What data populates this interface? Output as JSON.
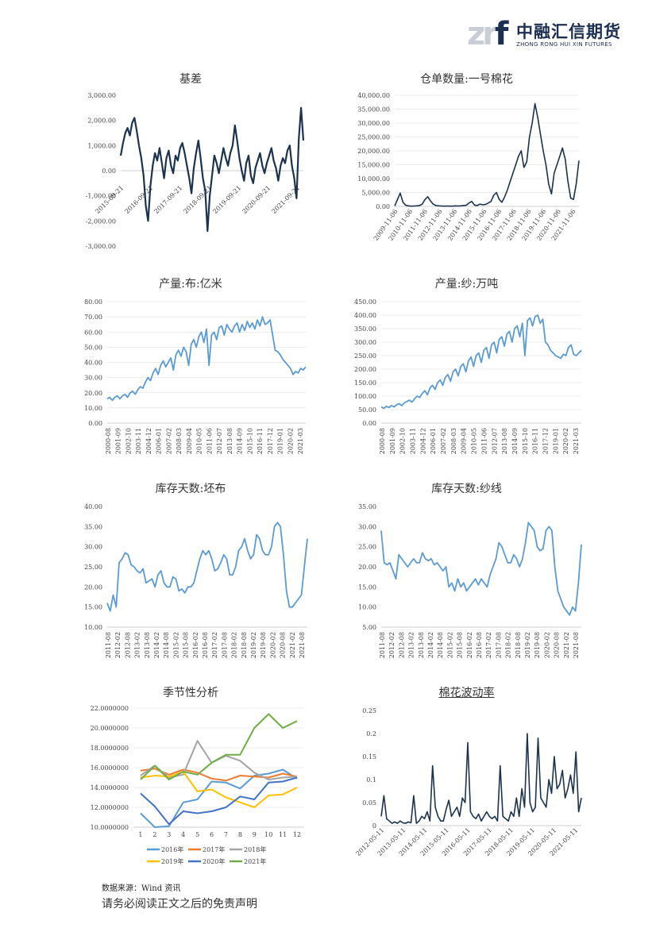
{
  "header": {
    "logo_mark": "zr",
    "logo_mark_f": "f",
    "logo_cn": "中融汇信期货",
    "logo_en": "ZHONG RONG HUI XIN FUTURES"
  },
  "footer": {
    "source": "数据来源：Wind 资讯",
    "disclaimer": "请务必阅读正文之后的免责声明"
  },
  "colors": {
    "dark_line": "#1c3350",
    "light_line": "#5b9bd5",
    "grid": "#d9d9d9"
  },
  "chart_data": [
    {
      "id": "basis",
      "type": "line",
      "title": "基差",
      "yticks": [
        "3,000.00",
        "2,000.00",
        "1,000.00",
        "0.00",
        "-1,000.00",
        "-2,000.00",
        "-3,000.00"
      ],
      "ylim": [
        -3000,
        3000
      ],
      "xlabels": [
        "2015-09-21",
        "2016-09-21",
        "2017-09-21",
        "2018-09-21",
        "2019-09-21",
        "2020-09-21",
        "2021-09-21"
      ],
      "grid": false,
      "series": [
        {
          "color": "#1c3350",
          "values": [
            600,
            1100,
            1500,
            1700,
            1400,
            1900,
            2100,
            1600,
            1000,
            500,
            -200,
            -1400,
            -2000,
            -600,
            200,
            700,
            400,
            900,
            300,
            -300,
            500,
            800,
            200,
            -100,
            600,
            400,
            900,
            1100,
            700,
            200,
            -300,
            -900,
            100,
            700,
            1200,
            500,
            -300,
            -800,
            -2400,
            -1000,
            -200,
            600,
            300,
            -100,
            400,
            900,
            500,
            200,
            700,
            1000,
            1800,
            1200,
            500,
            0,
            -400,
            300,
            600,
            -200,
            -500,
            100,
            400,
            700,
            200,
            -100,
            300,
            600,
            900,
            400,
            100,
            -400,
            200,
            500,
            300,
            800,
            1000,
            200,
            -300,
            -1100,
            1300,
            2500,
            1200
          ]
        }
      ]
    },
    {
      "id": "warehouse",
      "type": "line",
      "title": "仓单数量:一号棉花",
      "yticks": [
        "40,000.00",
        "35,000.00",
        "30,000.00",
        "25,000.00",
        "20,000.00",
        "15,000.00",
        "10,000.00",
        "5,000.00",
        "0.00"
      ],
      "ylim": [
        0,
        40000
      ],
      "xlabels": [
        "2009-11-06",
        "2010-11-06",
        "2011-11-06",
        "2012-11-06",
        "2013-11-06",
        "2014-11-06",
        "2015-11-06",
        "2016-11-06",
        "2017-11-06",
        "2018-11-06",
        "2019-11-06",
        "2020-11-06",
        "2021-11-06"
      ],
      "grid": true,
      "series": [
        {
          "color": "#1c3350",
          "values": [
            200,
            2500,
            4800,
            1500,
            400,
            200,
            100,
            150,
            200,
            300,
            800,
            2500,
            3500,
            2000,
            800,
            300,
            200,
            150,
            100,
            150,
            100,
            100,
            200,
            150,
            200,
            300,
            400,
            1200,
            1800,
            500,
            300,
            800,
            600,
            700,
            1200,
            1800,
            4000,
            5000,
            2500,
            1500,
            3500,
            6000,
            9000,
            12000,
            15000,
            18000,
            20000,
            14000,
            16000,
            25000,
            30000,
            37000,
            32000,
            26000,
            20000,
            15000,
            8000,
            4500,
            12000,
            15000,
            18000,
            21000,
            17000,
            9000,
            3000,
            2500,
            8000,
            16500
          ]
        }
      ]
    },
    {
      "id": "cloth",
      "type": "line",
      "title": "产量:布:亿米",
      "yticks": [
        "80.00",
        "70.00",
        "60.00",
        "50.00",
        "40.00",
        "30.00",
        "20.00",
        "10.00",
        "0.00"
      ],
      "ylim": [
        0,
        80
      ],
      "xlabels": [
        "2000-08",
        "2001-09",
        "2002-10",
        "2003-11",
        "2004-12",
        "2006-01",
        "2007-02",
        "2008-03",
        "2009-04",
        "2010-05",
        "2011-06",
        "2012-07",
        "2013-08",
        "2014-09",
        "2015-10",
        "2016-11",
        "2017-12",
        "2019-01",
        "2020-02",
        "2021-03"
      ],
      "grid": true,
      "series": [
        {
          "color": "#5b9bd5",
          "values": [
            16,
            17,
            15,
            17,
            18,
            16,
            18,
            19,
            17,
            20,
            21,
            19,
            22,
            24,
            23,
            27,
            30,
            28,
            33,
            36,
            32,
            38,
            41,
            37,
            40,
            43,
            35,
            45,
            48,
            44,
            50,
            47,
            38,
            52,
            55,
            50,
            57,
            60,
            53,
            62,
            38,
            58,
            60,
            55,
            63,
            64,
            58,
            65,
            62,
            60,
            64,
            66,
            60,
            65,
            61,
            67,
            63,
            66,
            62,
            68,
            64,
            70,
            65,
            66,
            68,
            58,
            48,
            47,
            45,
            42,
            40,
            38,
            36,
            32,
            34,
            33,
            36,
            35,
            37
          ]
        }
      ]
    },
    {
      "id": "yarn",
      "type": "line",
      "title": "产量:纱:万吨",
      "yticks": [
        "450.00",
        "400.00",
        "350.00",
        "300.00",
        "250.00",
        "200.00",
        "150.00",
        "100.00",
        "50.00",
        "0.00"
      ],
      "ylim": [
        0,
        450
      ],
      "xlabels": [
        "2000-08",
        "2001-09",
        "2002-10",
        "2003-11",
        "2004-12",
        "2006-01",
        "2007-02",
        "2008-03",
        "2009-04",
        "2010-05",
        "2011-06",
        "2012-07",
        "2013-08",
        "2014-09",
        "2015-10",
        "2016-11",
        "2017-12",
        "2019-01",
        "2020-02",
        "2021-03"
      ],
      "grid": true,
      "series": [
        {
          "color": "#5b9bd5",
          "values": [
            60,
            55,
            62,
            58,
            65,
            60,
            68,
            72,
            65,
            75,
            80,
            85,
            78,
            90,
            100,
            95,
            110,
            120,
            105,
            130,
            140,
            125,
            150,
            160,
            140,
            170,
            180,
            155,
            190,
            200,
            175,
            210,
            220,
            190,
            230,
            245,
            210,
            250,
            260,
            225,
            270,
            280,
            240,
            290,
            300,
            260,
            310,
            320,
            285,
            330,
            340,
            300,
            350,
            360,
            320,
            370,
            250,
            380,
            390,
            360,
            395,
            400,
            370,
            385,
            300,
            290,
            270,
            260,
            250,
            245,
            240,
            255,
            250,
            280,
            290,
            255,
            250,
            260,
            270
          ]
        }
      ]
    },
    {
      "id": "stock_cloth",
      "type": "line",
      "title": "库存天数:坯布",
      "yticks": [
        "40.00",
        "35.00",
        "30.00",
        "25.00",
        "20.00",
        "15.00",
        "10.00"
      ],
      "ylim": [
        10,
        40
      ],
      "xlabels": [
        "2011-08",
        "2012-02",
        "2012-08",
        "2013-02",
        "2013-08",
        "2014-02",
        "2014-08",
        "2015-02",
        "2015-08",
        "2016-02",
        "2016-08",
        "2017-02",
        "2017-08",
        "2018-02",
        "2018-08",
        "2019-02",
        "2019-08",
        "2020-02",
        "2020-08",
        "2021-02",
        "2021-08"
      ],
      "grid": false,
      "series": [
        {
          "color": "#5b9bd5",
          "values": [
            16,
            14,
            18,
            15,
            26,
            27,
            28.5,
            28,
            25.5,
            25,
            24,
            23.5,
            24.5,
            21,
            21.5,
            22,
            20,
            23,
            24,
            21,
            20,
            20,
            22.5,
            22,
            19,
            19.5,
            18.5,
            20,
            20,
            21,
            24,
            27,
            29,
            28,
            29,
            27,
            24,
            24.5,
            26,
            28,
            27,
            23,
            23,
            25,
            29,
            30,
            32,
            29,
            27,
            28,
            33,
            32,
            29,
            28,
            28,
            30,
            35,
            36,
            35,
            28,
            19,
            15,
            15,
            16,
            17,
            18,
            25,
            32
          ]
        }
      ]
    },
    {
      "id": "stock_yarn",
      "type": "line",
      "title": "库存天数:纱线",
      "yticks": [
        "35.00",
        "30.00",
        "25.00",
        "20.00",
        "15.00",
        "10.00",
        "5.00"
      ],
      "ylim": [
        5,
        35
      ],
      "xlabels": [
        "2011-08",
        "2012-02",
        "2012-08",
        "2013-02",
        "2013-08",
        "2014-02",
        "2014-08",
        "2015-02",
        "2015-08",
        "2016-02",
        "2016-08",
        "2017-02",
        "2017-08",
        "2018-02",
        "2018-08",
        "2019-02",
        "2019-08",
        "2020-02",
        "2020-08",
        "2021-02",
        "2021-08"
      ],
      "grid": false,
      "series": [
        {
          "color": "#5b9bd5",
          "values": [
            29,
            21,
            20.5,
            21,
            19,
            17,
            23,
            22,
            21,
            20,
            21,
            22,
            21,
            21,
            23.5,
            22,
            21.5,
            22,
            20.5,
            21,
            20,
            19,
            20,
            15,
            16,
            14,
            17,
            15,
            16,
            14,
            15,
            16,
            17,
            15.5,
            17,
            16,
            15,
            18,
            20,
            22,
            26,
            25,
            23,
            21,
            21,
            23,
            22,
            20,
            22,
            26,
            31,
            30,
            29,
            25,
            24,
            24.5,
            29,
            30,
            29,
            20,
            14,
            12,
            10,
            9,
            8,
            10,
            9,
            16,
            25.5
          ]
        }
      ]
    },
    {
      "id": "seasonal",
      "type": "line",
      "title": "季节性分析",
      "yticks": [
        "22.0000000",
        "20.0000000",
        "18.0000000",
        "16.0000000",
        "14.0000000",
        "12.0000000",
        "10.0000000"
      ],
      "ylim": [
        10,
        22
      ],
      "categories": [
        "1",
        "2",
        "3",
        "4",
        "5",
        "6",
        "7",
        "8",
        "9",
        "10",
        "11",
        "12"
      ],
      "grid": true,
      "legend": "bottom",
      "series": [
        {
          "name": "2016年",
          "color": "#5b9bd5",
          "values": [
            11.4,
            10.0,
            10.1,
            12.5,
            12.8,
            14.6,
            14.5,
            13.9,
            15.2,
            15.4,
            15.8,
            14.9
          ]
        },
        {
          "name": "2017年",
          "color": "#ed7d31",
          "values": [
            15.7,
            15.9,
            15.3,
            15.8,
            15.5,
            14.9,
            14.7,
            15.2,
            15.1,
            15.0,
            15.4,
            15.1
          ]
        },
        {
          "name": "2018年",
          "color": "#a5a5a5",
          "values": [
            15.2,
            16.2,
            15.0,
            15.3,
            18.7,
            16.5,
            17.2,
            16.7,
            15.5,
            14.8,
            15.0,
            15.1
          ]
        },
        {
          "name": "2019年",
          "color": "#ffc000",
          "values": [
            15.0,
            15.2,
            15.1,
            15.6,
            13.6,
            13.8,
            13.0,
            12.5,
            12.0,
            13.2,
            13.3,
            14.0
          ]
        },
        {
          "name": "2020年",
          "color": "#4472c4",
          "values": [
            13.4,
            12.1,
            10.3,
            11.6,
            11.4,
            11.6,
            12.0,
            13.1,
            12.8,
            14.5,
            14.6,
            15.0
          ]
        },
        {
          "name": "2021年",
          "color": "#70ad47",
          "values": [
            14.8,
            16.2,
            14.8,
            15.6,
            15.3,
            16.5,
            17.3,
            17.3,
            20.0,
            21.4,
            20.0,
            20.7
          ]
        }
      ]
    },
    {
      "id": "volatility",
      "type": "line",
      "title": "棉花波动率",
      "yticks": [
        "0.25",
        "0.2",
        "0.15",
        "0.1",
        "0.05",
        "0"
      ],
      "ylim": [
        0,
        0.25
      ],
      "xlabels": [
        "2012-05-11",
        "2013-05-11",
        "2014-05-11",
        "2015-05-11",
        "2016-05-11",
        "2017-05-11",
        "2018-05-11",
        "2019-05-11",
        "2020-05-11",
        "2021-05-11"
      ],
      "grid": false,
      "series": [
        {
          "color": "#1c3350",
          "values": [
            0.02,
            0.065,
            0.015,
            0.01,
            0.005,
            0.008,
            0.005,
            0.01,
            0.006,
            0.005,
            0.008,
            0.006,
            0.065,
            0.005,
            0.01,
            0.02,
            0.015,
            0.03,
            0.01,
            0.13,
            0.04,
            0.02,
            0.01,
            0.01,
            0.035,
            0.055,
            0.02,
            0.03,
            0.04,
            0.02,
            0.06,
            0.05,
            0.18,
            0.03,
            0.02,
            0.015,
            0.025,
            0.01,
            0.02,
            0.03,
            0.02,
            0.015,
            0.02,
            0.01,
            0.13,
            0.02,
            0.015,
            0.01,
            0.03,
            0.02,
            0.06,
            0.02,
            0.08,
            0.04,
            0.2,
            0.05,
            0.03,
            0.04,
            0.19,
            0.06,
            0.05,
            0.04,
            0.1,
            0.07,
            0.15,
            0.08,
            0.09,
            0.12,
            0.06,
            0.08,
            0.11,
            0.07,
            0.16,
            0.03,
            0.06
          ]
        }
      ]
    }
  ]
}
